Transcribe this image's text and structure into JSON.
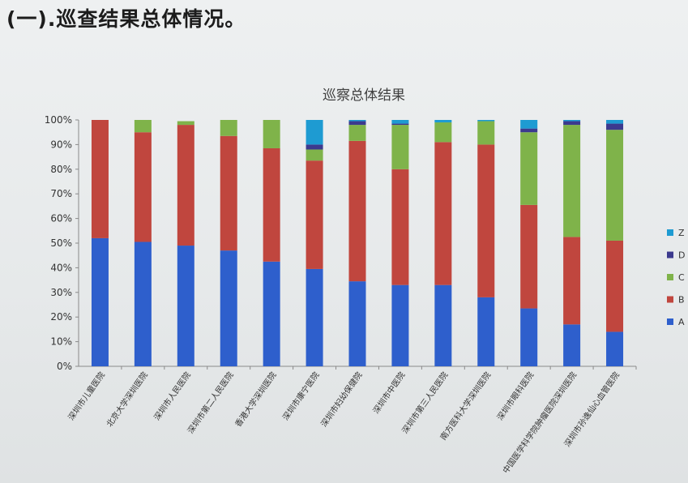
{
  "heading": "(一).巡查结果总体情况。",
  "chart_data": {
    "type": "bar",
    "stacked": true,
    "percent_stacked": true,
    "title": "巡察总体结果",
    "categories": [
      "深圳市儿童医院",
      "北京大学深圳医院",
      "深圳市人民医院",
      "深圳市第二人民医院",
      "香港大学深圳医院",
      "深圳市康宁医院",
      "深圳市妇幼保健院",
      "深圳市中医院",
      "深圳市第三人民医院",
      "南方医科大学深圳医院",
      "深圳市眼科医院",
      "中国医学科学院肿瘤医院深圳医院",
      "深圳市孙逸仙心血管医院"
    ],
    "series": [
      {
        "name": "A",
        "color": "#2e5fcc",
        "values": [
          52,
          50.5,
          49,
          47,
          42.5,
          39.5,
          34.5,
          33,
          33,
          28,
          23.5,
          17,
          14
        ]
      },
      {
        "name": "B",
        "color": "#c0463e",
        "values": [
          48,
          44.5,
          49,
          46.5,
          46,
          44,
          57,
          47,
          58,
          62,
          42,
          35.5,
          37
        ]
      },
      {
        "name": "C",
        "color": "#7fb34a",
        "values": [
          0,
          5,
          1.5,
          6.5,
          11.5,
          4.5,
          6.5,
          18,
          8,
          9.5,
          29.5,
          45.5,
          45
        ]
      },
      {
        "name": "D",
        "color": "#3c3a8e",
        "values": [
          0,
          0,
          0,
          0,
          0,
          2,
          1.5,
          0.5,
          0,
          0,
          1.5,
          1.5,
          2.5
        ]
      },
      {
        "name": "Z",
        "color": "#1e9bd2",
        "values": [
          0,
          0,
          0,
          0,
          0,
          10,
          0.5,
          1.5,
          1,
          0.5,
          3.5,
          0.5,
          1.5
        ]
      }
    ],
    "y_ticks": [
      "0%",
      "10%",
      "20%",
      "30%",
      "40%",
      "50%",
      "60%",
      "70%",
      "80%",
      "90%",
      "100%"
    ],
    "ylim": [
      0,
      100
    ],
    "grid": false,
    "legend_position": "right",
    "legend_order": [
      "Z",
      "D",
      "C",
      "B",
      "A"
    ]
  }
}
